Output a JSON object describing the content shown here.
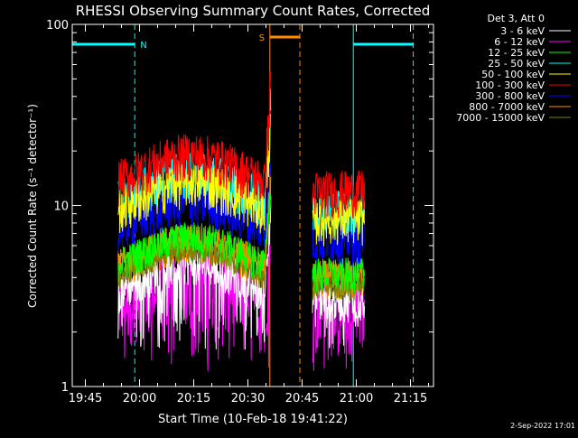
{
  "chart_data": {
    "type": "line",
    "title": "RHESSI Observing Summary Count Rates, Corrected",
    "xlabel": "Start Time (10-Feb-18 19:41:22)",
    "ylabel": "Corrected Count Rate (s⁻¹ detector⁻¹)",
    "date_stamp": "2-Sep-2022 17:01",
    "legend_header": "Det 3, Att 0",
    "legend_position": "outside-right",
    "y_scale": "log",
    "ylim": [
      1,
      100
    ],
    "y_ticks": [
      {
        "value": 1,
        "label": "1"
      },
      {
        "value": 10,
        "label": "10"
      },
      {
        "value": 100,
        "label": "100"
      }
    ],
    "xlim": [
      "19:41:22",
      "21:21:22"
    ],
    "x_ticks": [
      "19:45",
      "20:00",
      "20:15",
      "20:30",
      "20:45",
      "21:00",
      "21:15"
    ],
    "x_tick_minutes": [
      3.63,
      18.63,
      33.63,
      48.63,
      63.63,
      78.63,
      93.63
    ],
    "x_range_minutes": [
      0,
      100
    ],
    "flags": [
      {
        "label": "N",
        "color": "#00ffff",
        "start_min": 0,
        "end_min": 17.3,
        "style": "night"
      },
      {
        "label": "",
        "color": "#00ffff",
        "start_min": 77.8,
        "end_min": 94.4,
        "style": "night"
      },
      {
        "label": "S",
        "color": "#ff8c00",
        "start_min": 54.7,
        "end_min": 63.0,
        "style": "saa"
      }
    ],
    "data_gaps": [
      [
        55.0,
        66.5
      ]
    ],
    "data_segments": [
      [
        12.7,
        55.0
      ],
      [
        66.5,
        81.0
      ]
    ],
    "series": [
      {
        "name": "3 - 6 keV",
        "color": "#ffffff",
        "level": 3.0,
        "spread": 1.0
      },
      {
        "name": "6 - 12 keV",
        "color": "#ff00ff",
        "level": 2.6,
        "spread": 1.2
      },
      {
        "name": "12 - 25 keV",
        "color": "#00ff00",
        "level": 4.2,
        "spread": 0.9
      },
      {
        "name": "25 - 50 keV",
        "color": "#00ffff",
        "level": 9.5,
        "spread": 1.2
      },
      {
        "name": "50 - 100 keV",
        "color": "#ffff00",
        "level": 8.5,
        "spread": 1.2
      },
      {
        "name": "100 - 300 keV",
        "color": "#ff0000",
        "level": 12.0,
        "spread": 1.2
      },
      {
        "name": "300 - 800 keV",
        "color": "#0000ff",
        "level": 6.5,
        "spread": 1.1
      },
      {
        "name": "800 - 7000 keV",
        "color": "#ff8c00",
        "level": 4.0,
        "spread": 1.0
      },
      {
        "name": "7000 - 15000 keV",
        "color": "#808000",
        "level": 3.5,
        "spread": 0.6
      }
    ],
    "peak": {
      "time_min": 55.2,
      "value": 55
    }
  }
}
